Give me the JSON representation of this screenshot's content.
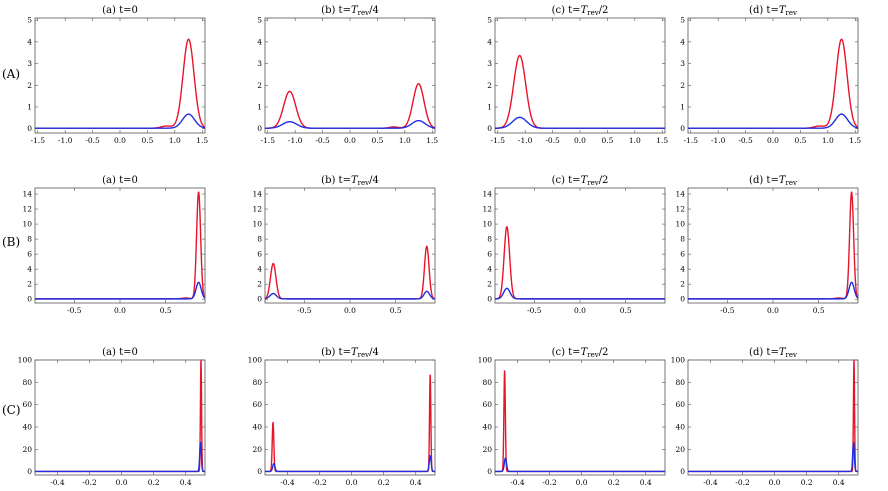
{
  "colors": {
    "series_red": "#e8142a",
    "series_blue": "#1f2ee0",
    "frame": "#555555"
  },
  "row_labels": [
    "(A)",
    "(B)",
    "(C)"
  ],
  "chart_data": [
    {
      "id": "A-a",
      "row": 0,
      "col": 0,
      "type": "line",
      "title_prefix": "(a) t=",
      "title_main": "0",
      "title_sub": "",
      "xlim": [
        -1.55,
        1.55
      ],
      "ylim": [
        -0.2,
        5.1
      ],
      "xticks": [
        -1.5,
        -1.0,
        -0.5,
        0.0,
        0.5,
        1.0,
        1.5
      ],
      "xtick_labels": [
        "-1.5",
        "-1.0",
        "-0.5",
        "0.0",
        "0.5",
        "1.0",
        "1.5"
      ],
      "yticks": [
        0,
        1,
        2,
        3,
        4,
        5
      ],
      "ytick_labels": [
        "0",
        "1",
        "2",
        "3",
        "4",
        "5"
      ],
      "baseline": 0.02,
      "series": [
        {
          "name": "red",
          "peaks": [
            {
              "x": 1.25,
              "h": 4.1,
              "w": 0.1
            }
          ],
          "bumps": [
            {
              "x": 0.85,
              "h": 0.1,
              "w": 0.1
            }
          ]
        },
        {
          "name": "blue",
          "peaks": [
            {
              "x": 1.25,
              "h": 0.65,
              "w": 0.11
            }
          ],
          "bumps": []
        }
      ]
    },
    {
      "id": "A-b",
      "row": 0,
      "col": 1,
      "type": "line",
      "title_prefix": "(b) t=",
      "title_main": "T",
      "title_sub": "rev",
      "title_suffix": "/4",
      "xlim": [
        -1.55,
        1.55
      ],
      "ylim": [
        -0.2,
        5.1
      ],
      "xticks": [
        -1.5,
        -1.0,
        -0.5,
        0.0,
        0.5,
        1.0,
        1.5
      ],
      "xtick_labels": [
        "-1.5",
        "-1.0",
        "-0.5",
        "0.0",
        "0.5",
        "1.0",
        "1.5"
      ],
      "yticks": [
        0,
        1,
        2,
        3,
        4,
        5
      ],
      "ytick_labels": [
        "0",
        "1",
        "2",
        "3",
        "4",
        "5"
      ],
      "baseline": 0.02,
      "series": [
        {
          "name": "red",
          "peaks": [
            {
              "x": -1.1,
              "h": 1.7,
              "w": 0.11
            },
            {
              "x": 1.25,
              "h": 2.05,
              "w": 0.1
            }
          ],
          "bumps": [
            {
              "x": 0.8,
              "h": 0.06,
              "w": 0.08
            }
          ]
        },
        {
          "name": "blue",
          "peaks": [
            {
              "x": -1.1,
              "h": 0.3,
              "w": 0.13
            },
            {
              "x": 1.25,
              "h": 0.35,
              "w": 0.12
            }
          ],
          "bumps": []
        }
      ]
    },
    {
      "id": "A-c",
      "row": 0,
      "col": 2,
      "type": "line",
      "title_prefix": "(c) t=",
      "title_main": "T",
      "title_sub": "rev",
      "title_suffix": "/2",
      "xlim": [
        -1.55,
        1.55
      ],
      "ylim": [
        -0.2,
        5.1
      ],
      "xticks": [
        -1.5,
        -1.0,
        -0.5,
        0.0,
        0.5,
        1.0,
        1.5
      ],
      "xtick_labels": [
        "-1.5",
        "-1.0",
        "-0.5",
        "0.0",
        "0.5",
        "1.0",
        "1.5"
      ],
      "yticks": [
        0,
        1,
        2,
        3,
        4,
        5
      ],
      "ytick_labels": [
        "0",
        "1",
        "2",
        "3",
        "4",
        "5"
      ],
      "baseline": 0.02,
      "series": [
        {
          "name": "red",
          "peaks": [
            {
              "x": -1.1,
              "h": 3.35,
              "w": 0.11
            }
          ],
          "bumps": []
        },
        {
          "name": "blue",
          "peaks": [
            {
              "x": -1.1,
              "h": 0.5,
              "w": 0.13
            }
          ],
          "bumps": []
        }
      ]
    },
    {
      "id": "A-d",
      "row": 0,
      "col": 3,
      "type": "line",
      "title_prefix": "(d) t=",
      "title_main": "T",
      "title_sub": "rev",
      "title_suffix": "",
      "xlim": [
        -1.55,
        1.55
      ],
      "ylim": [
        -0.2,
        5.1
      ],
      "xticks": [
        -1.5,
        -1.0,
        -0.5,
        0.0,
        0.5,
        1.0,
        1.5
      ],
      "xtick_labels": [
        "-1.5",
        "-1.0",
        "-0.5",
        "0.0",
        "0.5",
        "1.0",
        "1.5"
      ],
      "yticks": [
        0,
        1,
        2,
        3,
        4,
        5
      ],
      "ytick_labels": [
        "0",
        "1",
        "2",
        "3",
        "4",
        "5"
      ],
      "baseline": 0.02,
      "series": [
        {
          "name": "red",
          "peaks": [
            {
              "x": 1.25,
              "h": 4.1,
              "w": 0.1
            }
          ],
          "bumps": [
            {
              "x": 0.85,
              "h": 0.1,
              "w": 0.1
            }
          ]
        },
        {
          "name": "blue",
          "peaks": [
            {
              "x": 1.25,
              "h": 0.65,
              "w": 0.11
            }
          ],
          "bumps": []
        }
      ]
    },
    {
      "id": "B-a",
      "row": 1,
      "col": 0,
      "type": "line",
      "title_prefix": "(a) t=",
      "title_main": "0",
      "title_sub": "",
      "xlim": [
        -0.93,
        0.93
      ],
      "ylim": [
        -0.5,
        14.8
      ],
      "xticks": [
        -0.5,
        0.0,
        0.5
      ],
      "xtick_labels": [
        "-0.5",
        "0.0",
        "0.5"
      ],
      "yticks": [
        0,
        2,
        4,
        6,
        8,
        10,
        12,
        14
      ],
      "ytick_labels": [
        "0",
        "2",
        "4",
        "6",
        "8",
        "10",
        "12",
        "14"
      ],
      "baseline": 0.05,
      "series": [
        {
          "name": "red",
          "peaks": [
            {
              "x": 0.86,
              "h": 14.2,
              "w": 0.022
            }
          ],
          "bumps": [
            {
              "x": 0.72,
              "h": 0.12,
              "w": 0.04
            }
          ]
        },
        {
          "name": "blue",
          "peaks": [
            {
              "x": 0.86,
              "h": 2.2,
              "w": 0.028
            }
          ],
          "bumps": []
        }
      ]
    },
    {
      "id": "B-b",
      "row": 1,
      "col": 1,
      "type": "line",
      "title_prefix": "(b) t=",
      "title_main": "T",
      "title_sub": "rev",
      "title_suffix": "/4",
      "xlim": [
        -0.93,
        0.93
      ],
      "ylim": [
        -0.5,
        14.8
      ],
      "xticks": [
        -0.5,
        0.0,
        0.5
      ],
      "xtick_labels": [
        "-0.5",
        "0.0",
        "0.5"
      ],
      "yticks": [
        0,
        2,
        4,
        6,
        8,
        10,
        12,
        14
      ],
      "ytick_labels": [
        "0",
        "2",
        "4",
        "6",
        "8",
        "10",
        "12",
        "14"
      ],
      "baseline": 0.05,
      "series": [
        {
          "name": "red",
          "peaks": [
            {
              "x": -0.84,
              "h": 4.7,
              "w": 0.03
            },
            {
              "x": 0.84,
              "h": 7.0,
              "w": 0.025
            }
          ],
          "bumps": []
        },
        {
          "name": "blue",
          "peaks": [
            {
              "x": -0.84,
              "h": 0.7,
              "w": 0.035
            },
            {
              "x": 0.84,
              "h": 1.0,
              "w": 0.03
            }
          ],
          "bumps": []
        }
      ]
    },
    {
      "id": "B-c",
      "row": 1,
      "col": 2,
      "type": "line",
      "title_prefix": "(c) t=",
      "title_main": "T",
      "title_sub": "rev",
      "title_suffix": "/2",
      "xlim": [
        -0.93,
        0.93
      ],
      "ylim": [
        -0.5,
        14.8
      ],
      "xticks": [
        -0.5,
        0.0,
        0.5
      ],
      "xtick_labels": [
        "-0.5",
        "0.0",
        "0.5"
      ],
      "yticks": [
        0,
        2,
        4,
        6,
        8,
        10,
        12,
        14
      ],
      "ytick_labels": [
        "0",
        "2",
        "4",
        "6",
        "8",
        "10",
        "12",
        "14"
      ],
      "baseline": 0.05,
      "series": [
        {
          "name": "red",
          "peaks": [
            {
              "x": -0.8,
              "h": 9.6,
              "w": 0.03
            }
          ],
          "bumps": []
        },
        {
          "name": "blue",
          "peaks": [
            {
              "x": -0.8,
              "h": 1.4,
              "w": 0.035
            }
          ],
          "bumps": []
        }
      ]
    },
    {
      "id": "B-d",
      "row": 1,
      "col": 3,
      "type": "line",
      "title_prefix": "(d) t=",
      "title_main": "T",
      "title_sub": "rev",
      "title_suffix": "",
      "xlim": [
        -0.93,
        0.93
      ],
      "ylim": [
        -0.5,
        14.8
      ],
      "xticks": [
        -0.5,
        0.0,
        0.5
      ],
      "xtick_labels": [
        "-0.5",
        "0.0",
        "0.5"
      ],
      "yticks": [
        0,
        2,
        4,
        6,
        8,
        10,
        12,
        14
      ],
      "ytick_labels": [
        "0",
        "2",
        "4",
        "6",
        "8",
        "10",
        "12",
        "14"
      ],
      "baseline": 0.05,
      "series": [
        {
          "name": "red",
          "peaks": [
            {
              "x": 0.86,
              "h": 14.2,
              "w": 0.022
            }
          ],
          "bumps": [
            {
              "x": 0.72,
              "h": 0.12,
              "w": 0.04
            }
          ]
        },
        {
          "name": "blue",
          "peaks": [
            {
              "x": 0.86,
              "h": 2.2,
              "w": 0.028
            }
          ],
          "bumps": []
        }
      ]
    },
    {
      "id": "C-a",
      "row": 2,
      "col": 0,
      "type": "line",
      "title_prefix": "(a) t=",
      "title_main": "0",
      "title_sub": "",
      "xlim": [
        -0.54,
        0.52
      ],
      "ylim": [
        -3,
        100
      ],
      "xticks": [
        -0.4,
        -0.2,
        0.0,
        0.2,
        0.4
      ],
      "xtick_labels": [
        "-0.4",
        "-0.2",
        "0.0",
        "0.2",
        "0.4"
      ],
      "yticks": [
        0,
        20,
        40,
        60,
        80,
        100
      ],
      "ytick_labels": [
        "0",
        "20",
        "40",
        "60",
        "80",
        "100"
      ],
      "baseline": 0.2,
      "series": [
        {
          "name": "red",
          "peaks": [
            {
              "x": 0.495,
              "h": 100,
              "w": 0.0035
            }
          ],
          "bumps": []
        },
        {
          "name": "blue",
          "peaks": [
            {
              "x": 0.492,
              "h": 26,
              "w": 0.005
            }
          ],
          "bumps": []
        }
      ]
    },
    {
      "id": "C-b",
      "row": 2,
      "col": 1,
      "type": "line",
      "title_prefix": "(b) t=",
      "title_main": "T",
      "title_sub": "rev",
      "title_suffix": "/4",
      "xlim": [
        -0.54,
        0.52
      ],
      "ylim": [
        -3,
        100
      ],
      "xticks": [
        -0.4,
        -0.2,
        0.0,
        0.2,
        0.4
      ],
      "xtick_labels": [
        "-0.4",
        "-0.2",
        "0.0",
        "0.2",
        "0.4"
      ],
      "yticks": [
        0,
        20,
        40,
        60,
        80,
        100
      ],
      "ytick_labels": [
        "0",
        "20",
        "40",
        "60",
        "80",
        "100"
      ],
      "baseline": 0.2,
      "series": [
        {
          "name": "red",
          "peaks": [
            {
              "x": -0.49,
              "h": 44,
              "w": 0.005
            },
            {
              "x": 0.49,
              "h": 87,
              "w": 0.004
            }
          ],
          "bumps": []
        },
        {
          "name": "blue",
          "peaks": [
            {
              "x": -0.485,
              "h": 7,
              "w": 0.007
            },
            {
              "x": 0.49,
              "h": 14,
              "w": 0.006
            }
          ],
          "bumps": []
        }
      ]
    },
    {
      "id": "C-c",
      "row": 2,
      "col": 2,
      "type": "line",
      "title_prefix": "(c) t=",
      "title_main": "T",
      "title_sub": "rev",
      "title_suffix": "/2",
      "xlim": [
        -0.54,
        0.52
      ],
      "ylim": [
        -3,
        100
      ],
      "xticks": [
        -0.4,
        -0.2,
        0.0,
        0.2,
        0.4
      ],
      "xtick_labels": [
        "-0.4",
        "-0.2",
        "0.0",
        "0.2",
        "0.4"
      ],
      "yticks": [
        0,
        20,
        40,
        60,
        80,
        100
      ],
      "ytick_labels": [
        "0",
        "20",
        "40",
        "60",
        "80",
        "100"
      ],
      "baseline": 0.2,
      "series": [
        {
          "name": "red",
          "peaks": [
            {
              "x": -0.48,
              "h": 90,
              "w": 0.0045
            }
          ],
          "bumps": []
        },
        {
          "name": "blue",
          "peaks": [
            {
              "x": -0.475,
              "h": 12,
              "w": 0.007
            }
          ],
          "bumps": []
        }
      ]
    },
    {
      "id": "C-d",
      "row": 2,
      "col": 3,
      "type": "line",
      "title_prefix": "(d) t=",
      "title_main": "T",
      "title_sub": "rev",
      "title_suffix": "",
      "xlim": [
        -0.54,
        0.52
      ],
      "ylim": [
        -3,
        100
      ],
      "xticks": [
        -0.4,
        -0.2,
        0.0,
        0.2,
        0.4
      ],
      "xtick_labels": [
        "-0.4",
        "-0.2",
        "0.0",
        "0.2",
        "0.4"
      ],
      "yticks": [
        0,
        20,
        40,
        60,
        80,
        100
      ],
      "ytick_labels": [
        "0",
        "20",
        "40",
        "60",
        "80",
        "100"
      ],
      "baseline": 0.2,
      "series": [
        {
          "name": "red",
          "peaks": [
            {
              "x": 0.495,
              "h": 100,
              "w": 0.0035
            }
          ],
          "bumps": []
        },
        {
          "name": "blue",
          "peaks": [
            {
              "x": 0.492,
              "h": 26,
              "w": 0.005
            }
          ],
          "bumps": []
        }
      ]
    }
  ]
}
